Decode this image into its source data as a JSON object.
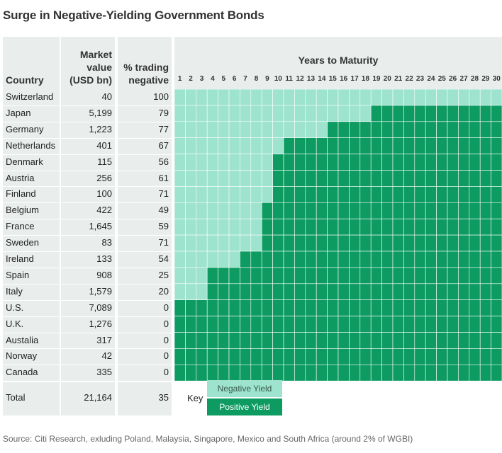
{
  "title": "Surge in Negative-Yielding Government Bonds",
  "headers": {
    "country": "Country",
    "market_value_line1": "Market",
    "market_value_line2": "value",
    "market_value_line3": "(USD bn)",
    "pct_line1": "% trading",
    "pct_line2": "negative",
    "years": "Years to Maturity"
  },
  "colors": {
    "negative": "#9de3cd",
    "positive": "#0e9b62",
    "band": "#e9eeec"
  },
  "chart_data": {
    "type": "heatmap",
    "title": "Surge in Negative-Yielding Government Bonds",
    "x_label": "Years to Maturity",
    "years": [
      1,
      2,
      3,
      4,
      5,
      6,
      7,
      8,
      9,
      10,
      11,
      12,
      13,
      14,
      15,
      16,
      17,
      18,
      19,
      20,
      21,
      22,
      23,
      24,
      25,
      26,
      27,
      28,
      29,
      30
    ],
    "legend": [
      "Negative Yield",
      "Positive Yield"
    ],
    "rows": [
      {
        "country": "Switzerland",
        "market_value": "40",
        "pct_negative": "100",
        "negative_years": 30
      },
      {
        "country": "Japan",
        "market_value": "5,199",
        "pct_negative": "79",
        "negative_years": 18
      },
      {
        "country": "Germany",
        "market_value": "1,223",
        "pct_negative": "77",
        "negative_years": 14
      },
      {
        "country": "Netherlands",
        "market_value": "401",
        "pct_negative": "67",
        "negative_years": 10
      },
      {
        "country": "Denmark",
        "market_value": "115",
        "pct_negative": "56",
        "negative_years": 9
      },
      {
        "country": "Austria",
        "market_value": "256",
        "pct_negative": "61",
        "negative_years": 9
      },
      {
        "country": "Finland",
        "market_value": "100",
        "pct_negative": "71",
        "negative_years": 9
      },
      {
        "country": "Belgium",
        "market_value": "422",
        "pct_negative": "49",
        "negative_years": 8
      },
      {
        "country": "France",
        "market_value": "1,645",
        "pct_negative": "59",
        "negative_years": 8
      },
      {
        "country": "Sweden",
        "market_value": "83",
        "pct_negative": "71",
        "negative_years": 8
      },
      {
        "country": "Ireland",
        "market_value": "133",
        "pct_negative": "54",
        "negative_years": 6
      },
      {
        "country": "Spain",
        "market_value": "908",
        "pct_negative": "25",
        "negative_years": 3
      },
      {
        "country": "Italy",
        "market_value": "1,579",
        "pct_negative": "20",
        "negative_years": 3
      },
      {
        "country": "U.S.",
        "market_value": "7,089",
        "pct_negative": "0",
        "negative_years": 0
      },
      {
        "country": "U.K.",
        "market_value": "1,276",
        "pct_negative": "0",
        "negative_years": 0
      },
      {
        "country": "Austalia",
        "market_value": "317",
        "pct_negative": "0",
        "negative_years": 0
      },
      {
        "country": "Norway",
        "market_value": "42",
        "pct_negative": "0",
        "negative_years": 0
      },
      {
        "country": "Canada",
        "market_value": "335",
        "pct_negative": "0",
        "negative_years": 0
      }
    ],
    "total": {
      "label": "Total",
      "market_value": "21,164",
      "pct_negative": "35"
    }
  },
  "key": {
    "label": "Key",
    "negative": "Negative Yield",
    "positive": "Positive Yield"
  },
  "source": "Source: Citi Research, exluding Poland, Malaysia, Singapore, Mexico and South Africa (around 2% of WGBI)"
}
